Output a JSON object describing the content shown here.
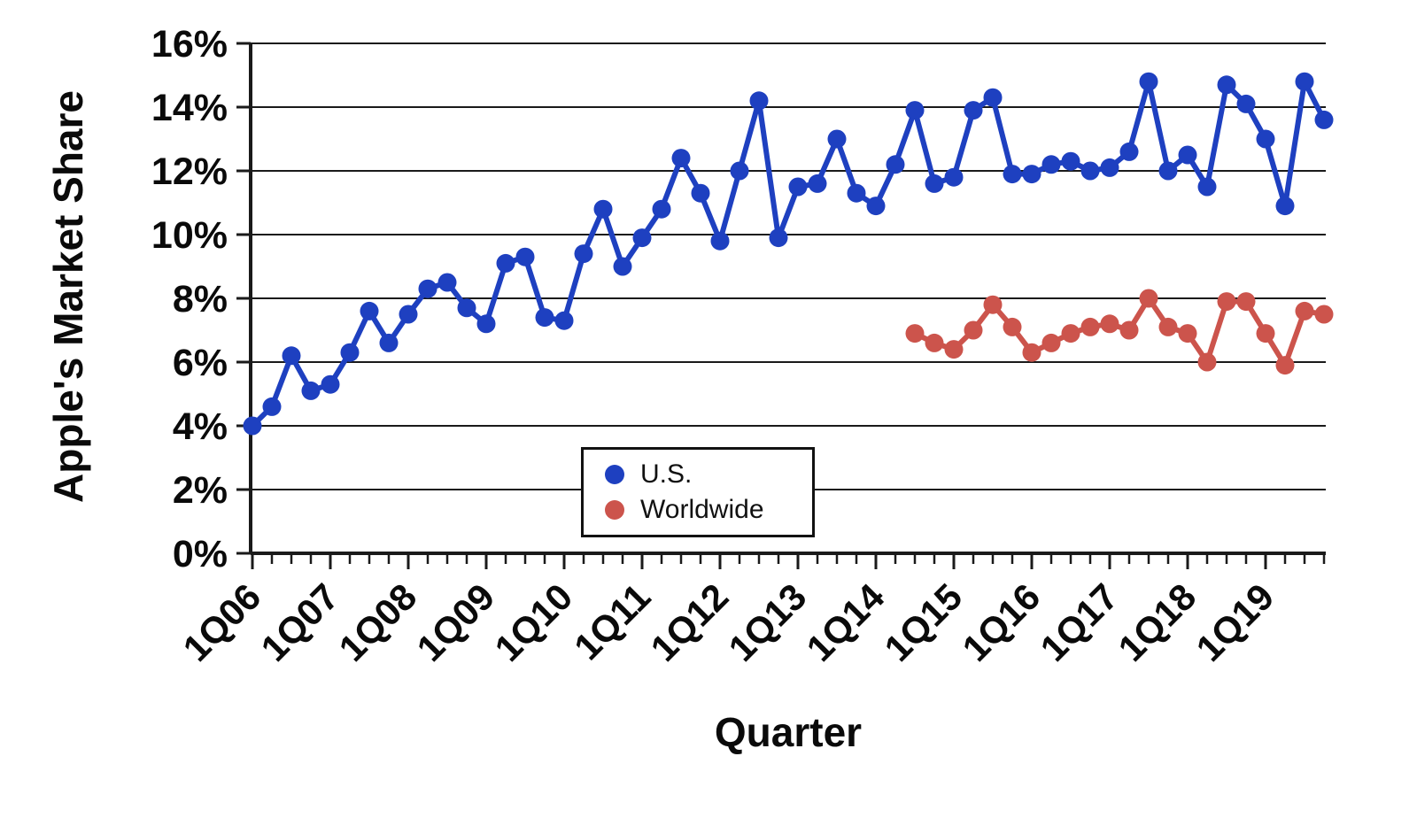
{
  "page": {
    "background": "#ffffff"
  },
  "chart_data": {
    "type": "line",
    "title": "",
    "xlabel": "Quarter",
    "ylabel": "Apple's Market Share",
    "ylim": [
      0,
      16
    ],
    "y_tick_step": 2,
    "y_tick_labels": [
      "0%",
      "2%",
      "4%",
      "6%",
      "8%",
      "10%",
      "12%",
      "14%",
      "16%"
    ],
    "x_tick_labels": [
      "1Q06",
      "1Q07",
      "1Q08",
      "1Q09",
      "1Q10",
      "1Q11",
      "1Q12",
      "1Q13",
      "1Q14",
      "1Q15",
      "1Q16",
      "1Q17",
      "1Q18",
      "1Q19"
    ],
    "x_tick_every": 4,
    "x_start": "1Q06",
    "grid": true,
    "legend_position": "bottom-center",
    "axis_color": "#1a1a1a",
    "series": [
      {
        "name": "U.S.",
        "color": "#1e40c0",
        "start_index": 0,
        "values": [
          4.0,
          4.6,
          6.2,
          5.1,
          5.3,
          6.3,
          7.6,
          6.6,
          7.5,
          8.3,
          8.5,
          7.7,
          7.2,
          9.1,
          9.3,
          7.4,
          7.3,
          9.4,
          10.8,
          9.0,
          9.9,
          10.8,
          12.4,
          11.3,
          9.8,
          12.0,
          14.2,
          9.9,
          11.5,
          11.6,
          13.0,
          11.3,
          10.9,
          12.2,
          13.9,
          11.6,
          11.8,
          13.9,
          14.3,
          11.9,
          11.9,
          12.2,
          12.3,
          12.0,
          12.1,
          12.6,
          14.8,
          12.0,
          12.5,
          11.5,
          14.7,
          14.1,
          13.0,
          10.9,
          14.8,
          13.6
        ]
      },
      {
        "name": "Worldwide",
        "color": "#cc544c",
        "start_index": 34,
        "values": [
          6.9,
          6.6,
          6.4,
          7.0,
          7.8,
          7.1,
          6.3,
          6.6,
          6.9,
          7.1,
          7.2,
          7.0,
          8.0,
          7.1,
          6.9,
          6.0,
          7.9,
          7.9,
          6.9,
          5.9,
          7.6,
          7.5
        ]
      }
    ]
  }
}
